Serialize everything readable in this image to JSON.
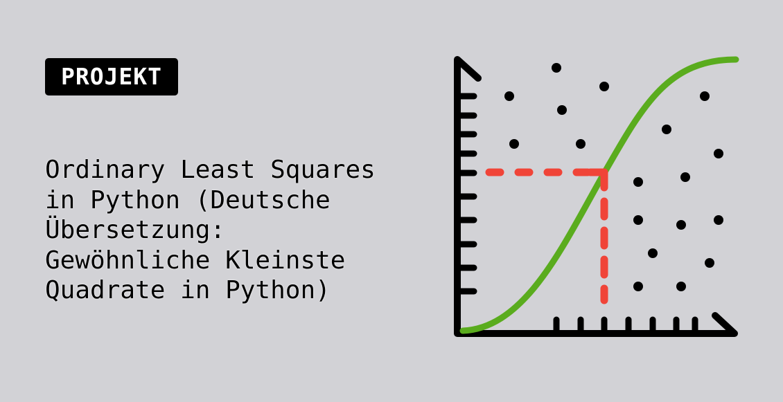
{
  "badge": {
    "label": "PROJEKT"
  },
  "title": "Ordinary Least Squares\nin Python (Deutsche\nÜbersetzung:\nGewöhnliche Kleinste\nQuadrate in Python)",
  "illustration": {
    "icon": "sigmoid-curve-scatter-chart-icon",
    "colors": {
      "background": "#d2d2d6",
      "axes": "#000000",
      "curve": "#5aac1e",
      "guide": "#f04438",
      "points": "#000000"
    }
  }
}
